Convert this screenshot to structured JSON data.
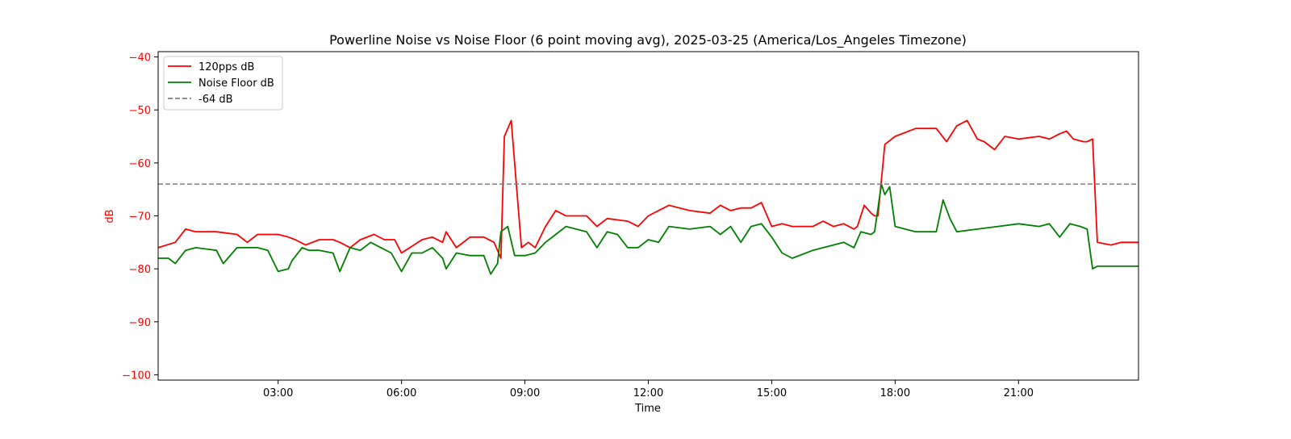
{
  "chart_data": {
    "type": "line",
    "title": "Powerline Noise vs Noise Floor (6 point moving avg), 2025-03-25 (America/Los_Angeles Timezone)",
    "xlabel": "Time",
    "ylabel": "dB",
    "x_unit": "hours",
    "xlim": [
      "00:05",
      "23:55"
    ],
    "ylim": [
      -101,
      -39
    ],
    "x_ticks": [
      {
        "hour": 3,
        "label": "03:00"
      },
      {
        "hour": 6,
        "label": "06:00"
      },
      {
        "hour": 9,
        "label": "09:00"
      },
      {
        "hour": 12,
        "label": "12:00"
      },
      {
        "hour": 15,
        "label": "15:00"
      },
      {
        "hour": 18,
        "label": "18:00"
      },
      {
        "hour": 21,
        "label": "21:00"
      }
    ],
    "y_ticks": [
      {
        "value": -40,
        "label": "−40"
      },
      {
        "value": -50,
        "label": "−50"
      },
      {
        "value": -60,
        "label": "−60"
      },
      {
        "value": -70,
        "label": "−70"
      },
      {
        "value": -80,
        "label": "−80"
      },
      {
        "value": -90,
        "label": "−90"
      },
      {
        "value": -100,
        "label": "−100"
      }
    ],
    "grid": false,
    "legend_position": "top-left",
    "reference_line": {
      "name": "-64 dB",
      "value": -64,
      "color": "#808080",
      "style": "dashed"
    },
    "series": [
      {
        "name": "120pps dB",
        "color": "#ff0000",
        "x": [
          "00:05",
          "00:30",
          "00:45",
          "01:00",
          "01:30",
          "02:00",
          "02:15",
          "02:30",
          "03:00",
          "03:15",
          "03:25",
          "03:40",
          "04:00",
          "04:20",
          "04:30",
          "04:45",
          "05:00",
          "05:20",
          "05:35",
          "05:50",
          "06:00",
          "06:30",
          "06:45",
          "07:00",
          "07:05",
          "07:20",
          "07:40",
          "08:00",
          "08:15",
          "08:25",
          "08:30",
          "08:40",
          "08:45",
          "08:55",
          "09:05",
          "09:15",
          "09:30",
          "09:45",
          "10:00",
          "10:30",
          "10:45",
          "11:00",
          "11:30",
          "11:45",
          "12:00",
          "12:15",
          "12:30",
          "13:00",
          "13:30",
          "13:45",
          "14:00",
          "14:15",
          "14:30",
          "14:45",
          "15:00",
          "15:15",
          "15:30",
          "16:00",
          "16:15",
          "16:30",
          "16:45",
          "17:00",
          "17:05",
          "17:15",
          "17:25",
          "17:30",
          "17:35",
          "17:45",
          "18:00",
          "18:30",
          "19:00",
          "19:15",
          "19:30",
          "19:45",
          "20:00",
          "20:10",
          "20:25",
          "20:40",
          "21:00",
          "21:30",
          "21:45",
          "22:00",
          "22:10",
          "22:20",
          "22:35",
          "22:40",
          "22:48",
          "22:55",
          "23:15",
          "23:30",
          "23:55"
        ],
        "y": [
          -76,
          -75,
          -72.5,
          -73,
          -73,
          -73.5,
          -75,
          -73.5,
          -73.5,
          -74,
          -74.5,
          -75.5,
          -74.5,
          -74.5,
          -75,
          -76,
          -74.5,
          -73.5,
          -74.5,
          -74.5,
          -77,
          -74.5,
          -74,
          -75,
          -73,
          -76,
          -74,
          -74,
          -75,
          -78,
          -55,
          -52,
          -60,
          -76,
          -75,
          -76,
          -72,
          -69,
          -70,
          -70,
          -72,
          -70.5,
          -71,
          -72,
          -70,
          -69,
          -68,
          -69,
          -69.5,
          -68,
          -69,
          -68.5,
          -68.5,
          -67.5,
          -72,
          -71.5,
          -72,
          -72,
          -71,
          -72,
          -71.5,
          -72.5,
          -72,
          -68,
          -69.5,
          -70,
          -70,
          -56.5,
          -55,
          -53.5,
          -53.5,
          -56,
          -53,
          -52,
          -55.5,
          -56,
          -57.5,
          -55,
          -55.5,
          -55,
          -55.5,
          -54.5,
          -54,
          -55.5,
          -56,
          -56,
          -55.5,
          -75,
          -75.5,
          -75,
          -75
        ]
      },
      {
        "name": "Noise Floor dB",
        "color": "#008000",
        "x": [
          "00:05",
          "00:20",
          "00:30",
          "00:45",
          "01:00",
          "01:30",
          "01:40",
          "02:00",
          "02:30",
          "02:45",
          "03:00",
          "03:15",
          "03:20",
          "03:35",
          "03:45",
          "04:00",
          "04:20",
          "04:30",
          "04:45",
          "05:00",
          "05:15",
          "05:30",
          "05:45",
          "06:00",
          "06:15",
          "06:30",
          "06:45",
          "07:00",
          "07:05",
          "07:20",
          "07:40",
          "08:00",
          "08:10",
          "08:20",
          "08:25",
          "08:35",
          "08:45",
          "09:00",
          "09:15",
          "09:30",
          "09:45",
          "10:00",
          "10:30",
          "10:45",
          "11:00",
          "11:15",
          "11:30",
          "11:45",
          "12:00",
          "12:15",
          "12:30",
          "13:00",
          "13:30",
          "13:45",
          "14:00",
          "14:15",
          "14:30",
          "14:45",
          "15:00",
          "15:15",
          "15:30",
          "16:00",
          "16:15",
          "16:30",
          "16:45",
          "17:00",
          "17:10",
          "17:25",
          "17:30",
          "17:40",
          "17:45",
          "17:52",
          "18:00",
          "18:30",
          "19:00",
          "19:10",
          "19:20",
          "19:30",
          "20:00",
          "20:30",
          "21:00",
          "21:30",
          "21:45",
          "22:00",
          "22:15",
          "22:30",
          "22:40",
          "22:48",
          "22:55",
          "23:30",
          "23:55"
        ],
        "y": [
          -78,
          -78,
          -79,
          -76.5,
          -76,
          -76.5,
          -79,
          -76,
          -76,
          -76.5,
          -80.5,
          -80,
          -78.5,
          -76,
          -76.5,
          -76.5,
          -77,
          -80.5,
          -76,
          -76.5,
          -75,
          -76,
          -77,
          -80.5,
          -77,
          -77,
          -76,
          -78,
          -80,
          -77,
          -77.5,
          -77.5,
          -81,
          -79,
          -73,
          -72,
          -77.5,
          -77.5,
          -77,
          -75,
          -73.5,
          -72,
          -73,
          -76,
          -73,
          -73.5,
          -76,
          -76,
          -74.5,
          -75,
          -72,
          -72.5,
          -72,
          -73.5,
          -72,
          -75,
          -72,
          -71.5,
          -74,
          -77,
          -78,
          -76.5,
          -76,
          -75.5,
          -75,
          -76,
          -73,
          -73.5,
          -73,
          -64,
          -66,
          -64.5,
          -72,
          -73,
          -73,
          -67,
          -70.5,
          -73,
          -72.5,
          -72,
          -71.5,
          -72,
          -71.5,
          -74,
          -71.5,
          -72,
          -72.5,
          -80,
          -79.5,
          -79.5,
          -79.5
        ]
      }
    ]
  }
}
